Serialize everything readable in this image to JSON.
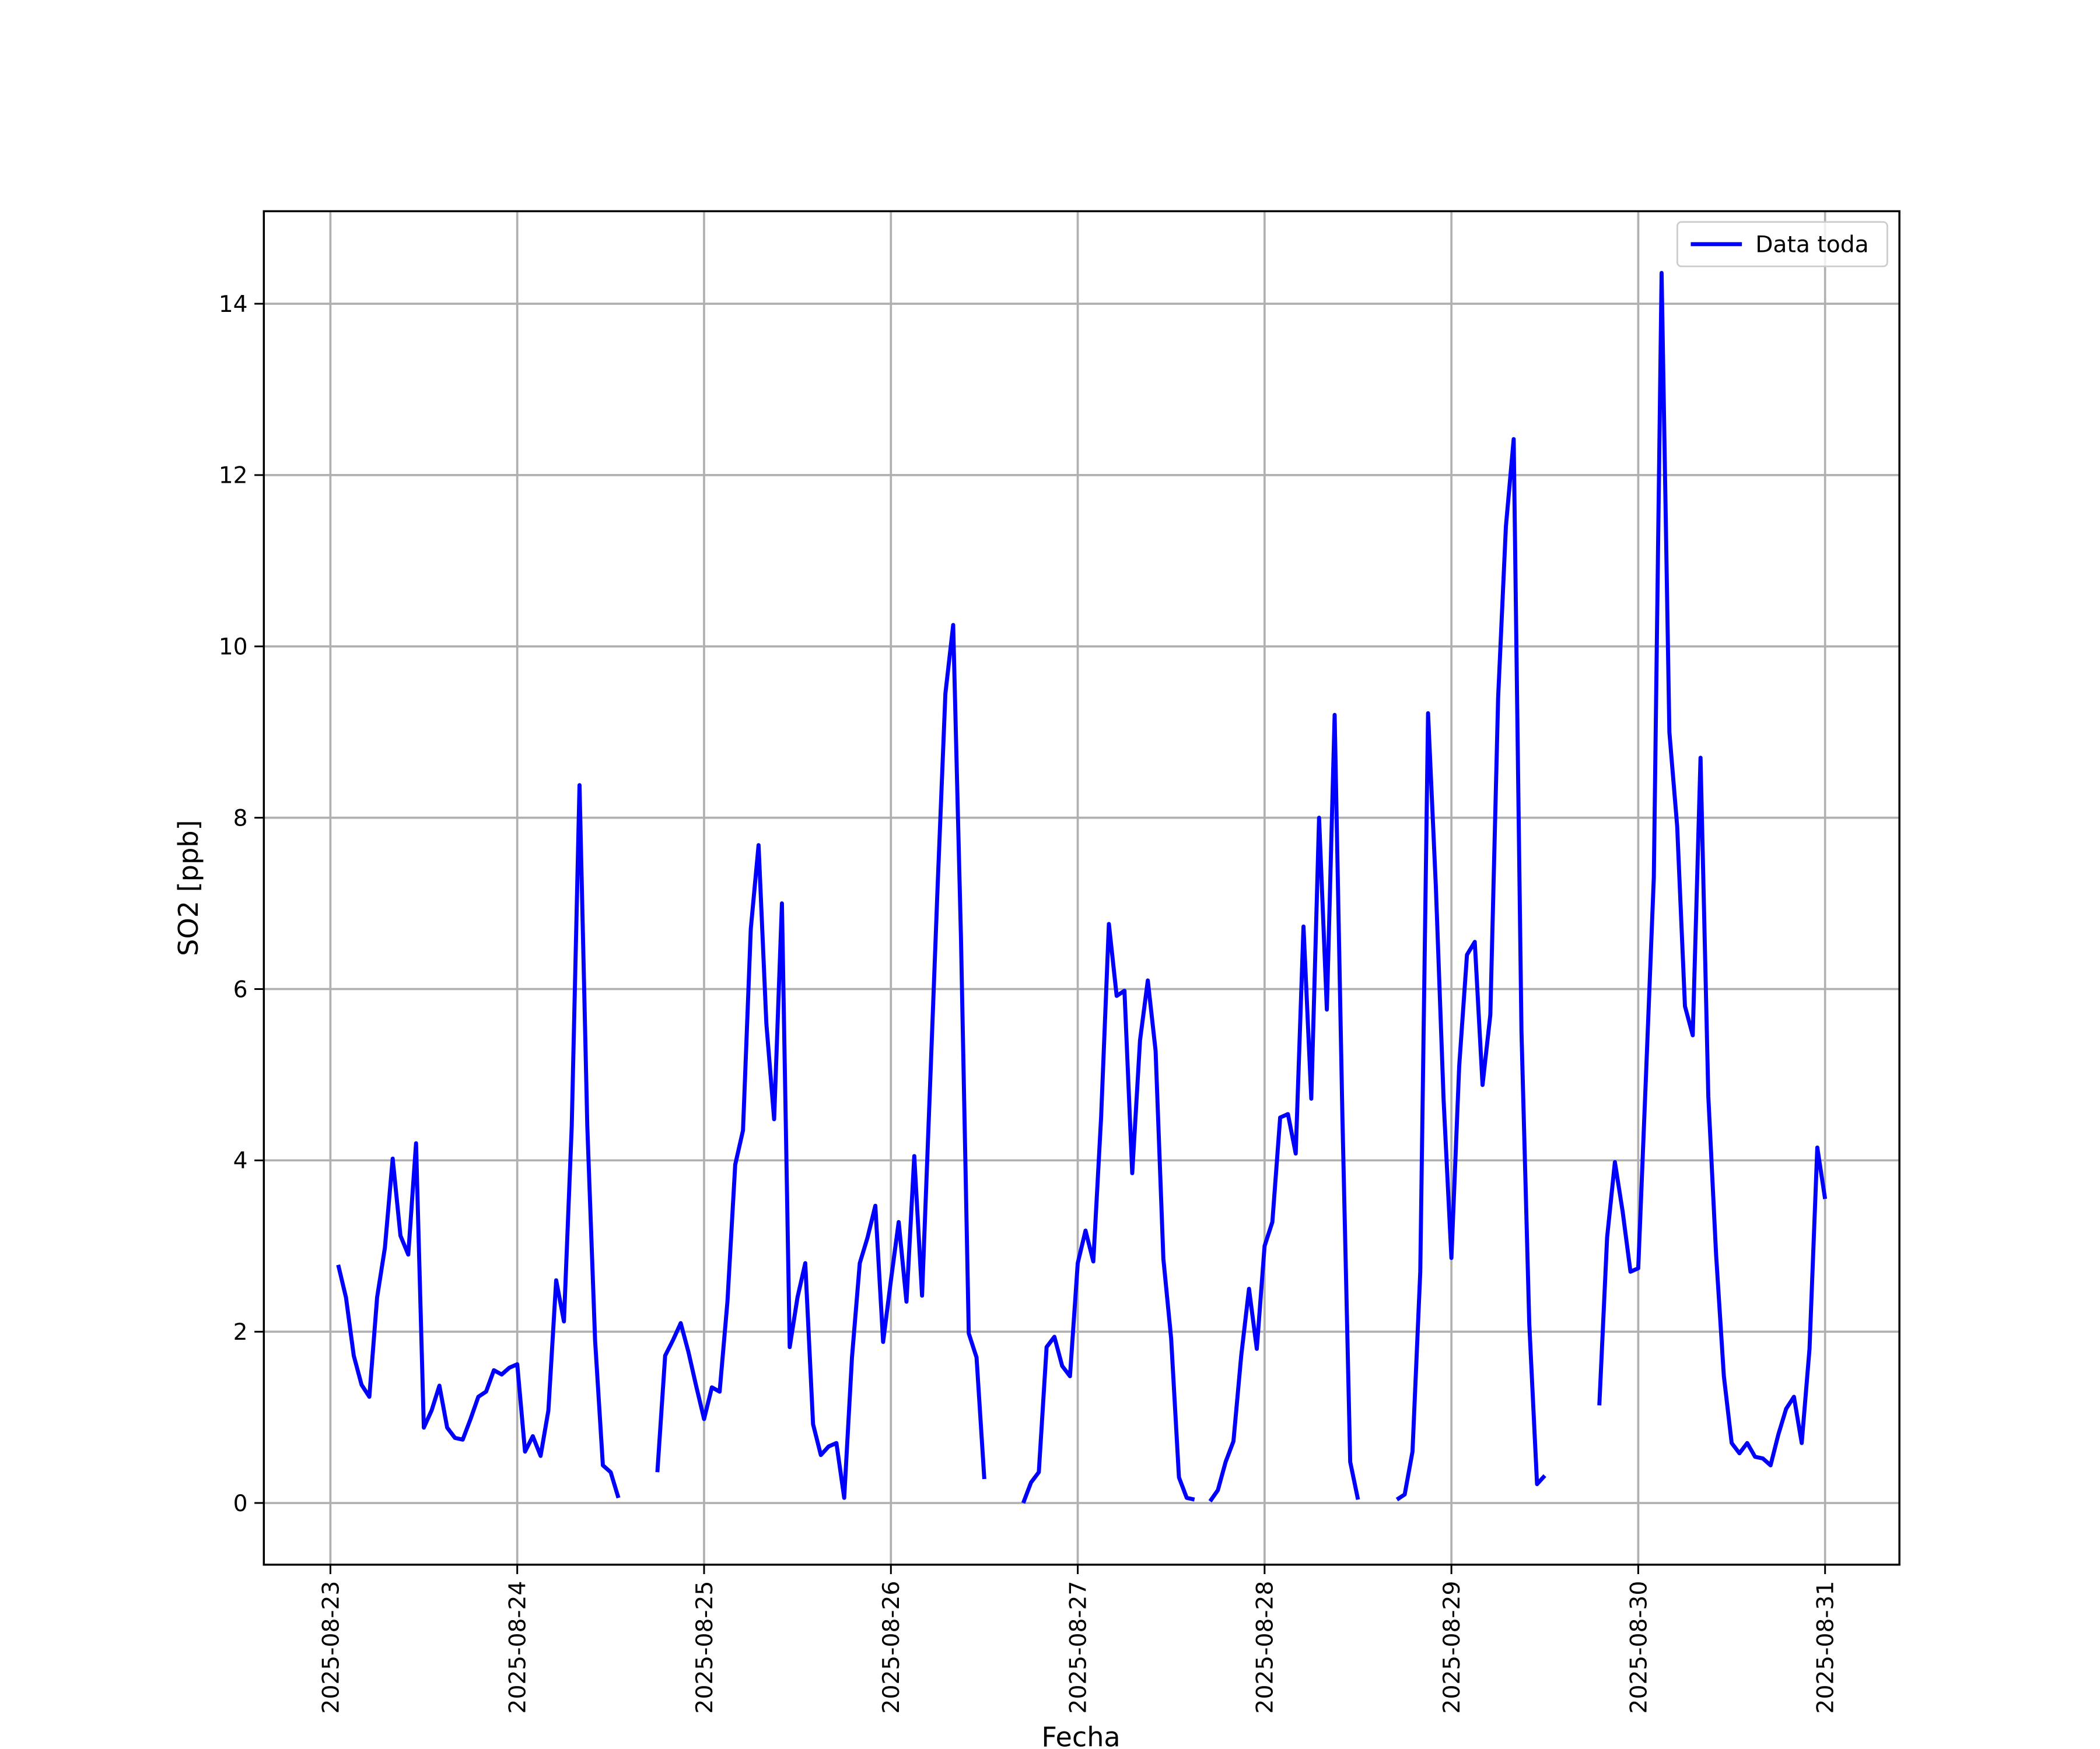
{
  "chart_data": {
    "type": "line",
    "xlabel": "Fecha",
    "ylabel": "SO2 [ppb]",
    "x": [
      "2025-08-23 01:00",
      "2025-08-23 02:00",
      "2025-08-23 03:00",
      "2025-08-23 04:00",
      "2025-08-23 05:00",
      "2025-08-23 06:00",
      "2025-08-23 07:00",
      "2025-08-23 08:00",
      "2025-08-23 09:00",
      "2025-08-23 10:00",
      "2025-08-23 11:00",
      "2025-08-23 12:00",
      "2025-08-23 13:00",
      "2025-08-23 14:00",
      "2025-08-23 15:00",
      "2025-08-23 16:00",
      "2025-08-23 17:00",
      "2025-08-23 18:00",
      "2025-08-23 19:00",
      "2025-08-23 20:00",
      "2025-08-23 21:00",
      "2025-08-23 22:00",
      "2025-08-23 23:00",
      "2025-08-24 00:00",
      "2025-08-24 01:00",
      "2025-08-24 02:00",
      "2025-08-24 03:00",
      "2025-08-24 04:00",
      "2025-08-24 05:00",
      "2025-08-24 06:00",
      "2025-08-24 07:00",
      "2025-08-24 08:00",
      "2025-08-24 09:00",
      "2025-08-24 10:00",
      "2025-08-24 11:00",
      "2025-08-24 12:00",
      "2025-08-24 13:00",
      "2025-08-24 14:00",
      "2025-08-24 15:00",
      "2025-08-24 16:00",
      "2025-08-24 17:00",
      "2025-08-24 18:00",
      "2025-08-24 19:00",
      "2025-08-24 20:00",
      "2025-08-24 21:00",
      "2025-08-24 22:00",
      "2025-08-24 23:00",
      "2025-08-25 00:00",
      "2025-08-25 01:00",
      "2025-08-25 02:00",
      "2025-08-25 03:00",
      "2025-08-25 04:00",
      "2025-08-25 05:00",
      "2025-08-25 06:00",
      "2025-08-25 07:00",
      "2025-08-25 08:00",
      "2025-08-25 09:00",
      "2025-08-25 10:00",
      "2025-08-25 11:00",
      "2025-08-25 12:00",
      "2025-08-25 13:00",
      "2025-08-25 14:00",
      "2025-08-25 15:00",
      "2025-08-25 16:00",
      "2025-08-25 17:00",
      "2025-08-25 18:00",
      "2025-08-25 19:00",
      "2025-08-25 20:00",
      "2025-08-25 21:00",
      "2025-08-25 22:00",
      "2025-08-25 23:00",
      "2025-08-26 00:00",
      "2025-08-26 01:00",
      "2025-08-26 02:00",
      "2025-08-26 03:00",
      "2025-08-26 04:00",
      "2025-08-26 05:00",
      "2025-08-26 06:00",
      "2025-08-26 07:00",
      "2025-08-26 08:00",
      "2025-08-26 09:00",
      "2025-08-26 10:00",
      "2025-08-26 11:00",
      "2025-08-26 12:00",
      "2025-08-26 13:00",
      "2025-08-26 14:00",
      "2025-08-26 15:00",
      "2025-08-26 16:00",
      "2025-08-26 17:00",
      "2025-08-26 18:00",
      "2025-08-26 19:00",
      "2025-08-26 20:00",
      "2025-08-26 21:00",
      "2025-08-26 22:00",
      "2025-08-26 23:00",
      "2025-08-27 00:00",
      "2025-08-27 01:00",
      "2025-08-27 02:00",
      "2025-08-27 03:00",
      "2025-08-27 04:00",
      "2025-08-27 05:00",
      "2025-08-27 06:00",
      "2025-08-27 07:00",
      "2025-08-27 08:00",
      "2025-08-27 09:00",
      "2025-08-27 10:00",
      "2025-08-27 11:00",
      "2025-08-27 12:00",
      "2025-08-27 13:00",
      "2025-08-27 14:00",
      "2025-08-27 15:00",
      "2025-08-27 16:00",
      "2025-08-27 17:00",
      "2025-08-27 18:00",
      "2025-08-27 19:00",
      "2025-08-27 20:00",
      "2025-08-27 21:00",
      "2025-08-27 22:00",
      "2025-08-27 23:00",
      "2025-08-28 00:00",
      "2025-08-28 01:00",
      "2025-08-28 02:00",
      "2025-08-28 03:00",
      "2025-08-28 04:00",
      "2025-08-28 05:00",
      "2025-08-28 06:00",
      "2025-08-28 07:00",
      "2025-08-28 08:00",
      "2025-08-28 09:00",
      "2025-08-28 10:00",
      "2025-08-28 11:00",
      "2025-08-28 12:00",
      "2025-08-28 13:00",
      "2025-08-28 14:00",
      "2025-08-28 15:00",
      "2025-08-28 16:00",
      "2025-08-28 17:00",
      "2025-08-28 18:00",
      "2025-08-28 19:00",
      "2025-08-28 20:00",
      "2025-08-28 21:00",
      "2025-08-28 22:00",
      "2025-08-28 23:00",
      "2025-08-29 00:00",
      "2025-08-29 01:00",
      "2025-08-29 02:00",
      "2025-08-29 03:00",
      "2025-08-29 04:00",
      "2025-08-29 05:00",
      "2025-08-29 06:00",
      "2025-08-29 07:00",
      "2025-08-29 08:00",
      "2025-08-29 09:00",
      "2025-08-29 10:00",
      "2025-08-29 11:00",
      "2025-08-29 12:00",
      "2025-08-29 13:00",
      "2025-08-29 14:00",
      "2025-08-29 15:00",
      "2025-08-29 16:00",
      "2025-08-29 17:00",
      "2025-08-29 18:00",
      "2025-08-29 19:00",
      "2025-08-29 20:00",
      "2025-08-29 21:00",
      "2025-08-29 22:00",
      "2025-08-29 23:00",
      "2025-08-30 00:00",
      "2025-08-30 01:00",
      "2025-08-30 02:00",
      "2025-08-30 03:00",
      "2025-08-30 04:00",
      "2025-08-30 05:00",
      "2025-08-30 06:00",
      "2025-08-30 07:00",
      "2025-08-30 08:00",
      "2025-08-30 09:00",
      "2025-08-30 10:00",
      "2025-08-30 11:00",
      "2025-08-30 12:00",
      "2025-08-30 13:00",
      "2025-08-30 14:00",
      "2025-08-30 15:00",
      "2025-08-30 16:00",
      "2025-08-30 17:00",
      "2025-08-30 18:00",
      "2025-08-30 19:00",
      "2025-08-30 20:00",
      "2025-08-30 21:00",
      "2025-08-30 22:00",
      "2025-08-30 23:00",
      "2025-08-31 00:00"
    ],
    "series": [
      {
        "name": "Data toda",
        "color": "#0000ff",
        "values": [
          2.78,
          2.4,
          1.72,
          1.38,
          1.24,
          2.4,
          2.98,
          4.02,
          3.12,
          2.9,
          4.2,
          0.88,
          1.08,
          1.37,
          0.88,
          0.76,
          0.74,
          0.98,
          1.24,
          1.3,
          1.55,
          1.5,
          1.58,
          1.62,
          0.6,
          0.78,
          0.55,
          1.08,
          2.6,
          2.12,
          4.4,
          8.38,
          4.4,
          1.9,
          0.44,
          0.36,
          0.06,
          null,
          null,
          null,
          null,
          0.36,
          1.72,
          1.9,
          2.1,
          1.76,
          1.36,
          0.98,
          1.35,
          1.3,
          2.35,
          3.95,
          4.35,
          6.7,
          7.68,
          5.6,
          4.48,
          7.0,
          1.82,
          2.4,
          2.8,
          0.92,
          0.56,
          0.66,
          0.7,
          0.06,
          1.7,
          2.8,
          3.1,
          3.47,
          1.88,
          2.6,
          3.28,
          2.35,
          4.05,
          2.42,
          4.8,
          7.2,
          9.45,
          10.25,
          6.6,
          1.98,
          1.7,
          0.28,
          null,
          null,
          null,
          null,
          0.0,
          0.24,
          0.36,
          1.82,
          1.94,
          1.6,
          1.48,
          2.8,
          3.18,
          2.82,
          4.5,
          6.76,
          5.92,
          5.98,
          3.85,
          5.4,
          6.1,
          5.28,
          2.85,
          1.92,
          0.3,
          0.06,
          0.04,
          null,
          0.02,
          0.15,
          0.48,
          0.72,
          1.72,
          2.5,
          1.8,
          3.0,
          3.28,
          4.5,
          4.54,
          4.08,
          6.73,
          4.72,
          8.0,
          5.76,
          9.2,
          4.5,
          0.48,
          0.04,
          null,
          null,
          null,
          null,
          0.04,
          0.1,
          0.6,
          2.7,
          9.22,
          7.2,
          4.7,
          2.86,
          5.1,
          6.4,
          6.55,
          4.88,
          5.7,
          9.4,
          11.4,
          12.42,
          5.5,
          2.1,
          0.22,
          0.32,
          null,
          null,
          null,
          null,
          null,
          null,
          1.14,
          3.1,
          3.98,
          3.4,
          2.7,
          2.74,
          5.0,
          7.3,
          14.36,
          9.0,
          7.9,
          5.8,
          5.46,
          8.7,
          4.75,
          2.9,
          1.48,
          0.7,
          0.58,
          0.7,
          0.54,
          0.52,
          0.44,
          0.8,
          1.1,
          1.24,
          0.7,
          1.8,
          4.15,
          3.55
        ]
      }
    ],
    "xlim": [
      "2025-08-22 15:27",
      "2025-08-31 09:33"
    ],
    "xticks": [
      "2025-08-23",
      "2025-08-24",
      "2025-08-25",
      "2025-08-26",
      "2025-08-27",
      "2025-08-28",
      "2025-08-29",
      "2025-08-30",
      "2025-08-31"
    ],
    "ylim": [
      -0.72,
      15.08
    ],
    "yticks": [
      0,
      2,
      4,
      6,
      8,
      10,
      12,
      14
    ],
    "grid": true,
    "legend": "upper right"
  }
}
